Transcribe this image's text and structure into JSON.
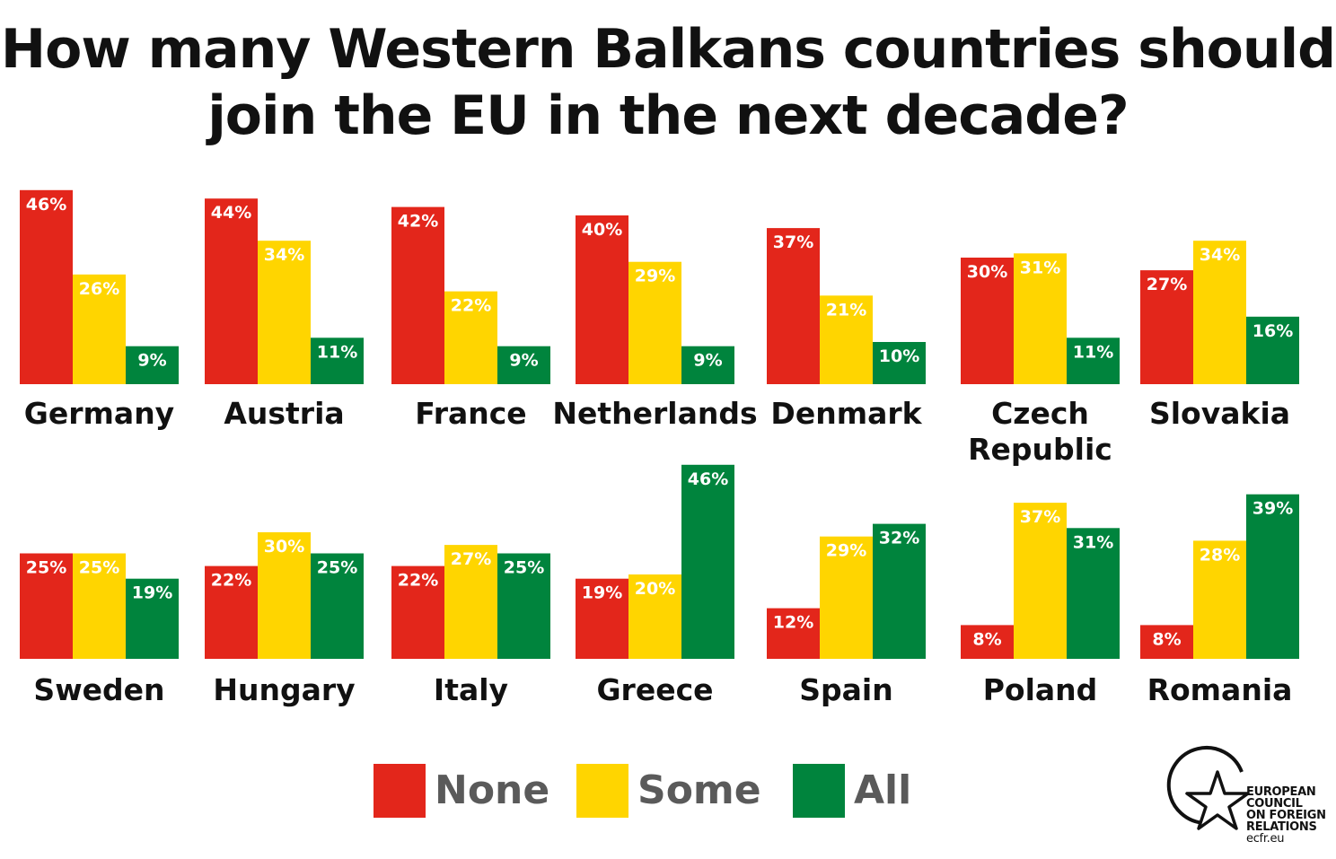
{
  "title": {
    "line1": "How many Western Balkans countries should",
    "line2": "join the EU in the next decade?"
  },
  "colors": {
    "None": "#e3261b",
    "Some": "#ffd500",
    "All": "#00843d"
  },
  "legend": [
    {
      "key": "None",
      "label": "None"
    },
    {
      "key": "Some",
      "label": "Some"
    },
    {
      "key": "All",
      "label": "All"
    }
  ],
  "logo": {
    "lines": [
      "EUROPEAN",
      "COUNCIL",
      "ON FOREIGN",
      "RELATIONS"
    ],
    "url": "ecfr.eu"
  },
  "chart_data": {
    "type": "bar",
    "series_names": [
      "None",
      "Some",
      "All"
    ],
    "panels": [
      {
        "name": "Germany",
        "values": [
          46,
          26,
          9
        ],
        "labels": [
          "46%",
          "26%",
          "9%"
        ]
      },
      {
        "name": "Austria",
        "values": [
          44,
          34,
          11
        ],
        "labels": [
          "44%",
          "34%",
          "11%"
        ]
      },
      {
        "name": "France",
        "values": [
          42,
          22,
          9
        ],
        "labels": [
          "42%",
          "22%",
          "9%"
        ]
      },
      {
        "name": "Netherlands",
        "values": [
          40,
          29,
          9
        ],
        "labels": [
          "40%",
          "29%",
          "9%"
        ]
      },
      {
        "name": "Denmark",
        "values": [
          37,
          21,
          10
        ],
        "labels": [
          "37%",
          "21%",
          "10%"
        ]
      },
      {
        "name": "Czech Republic",
        "name_lines": [
          "Czech",
          "Republic"
        ],
        "values": [
          30,
          31,
          11
        ],
        "labels": [
          "30%",
          "31%",
          "11%"
        ]
      },
      {
        "name": "Slovakia",
        "values": [
          27,
          34,
          16
        ],
        "labels": [
          "27%",
          "34%",
          "16%"
        ]
      },
      {
        "name": "Sweden",
        "values": [
          25,
          25,
          19
        ],
        "labels": [
          "25%",
          "25%",
          "19%"
        ]
      },
      {
        "name": "Hungary",
        "values": [
          22,
          30,
          25
        ],
        "labels": [
          "22%",
          "30%",
          "25%"
        ]
      },
      {
        "name": "Italy",
        "values": [
          22,
          27,
          25
        ],
        "labels": [
          "22%",
          "27%",
          "25%"
        ]
      },
      {
        "name": "Greece",
        "values": [
          19,
          20,
          46
        ],
        "labels": [
          "19%",
          "20%",
          "46%"
        ]
      },
      {
        "name": "Spain",
        "values": [
          12,
          29,
          32
        ],
        "labels": [
          "12%",
          "29%",
          "32%"
        ]
      },
      {
        "name": "Poland",
        "values": [
          8,
          37,
          31
        ],
        "labels": [
          "8%",
          "37%",
          "31%"
        ]
      },
      {
        "name": "Romania",
        "values": [
          8,
          28,
          39
        ],
        "labels": [
          "8%",
          "28%",
          "39%"
        ]
      }
    ]
  }
}
